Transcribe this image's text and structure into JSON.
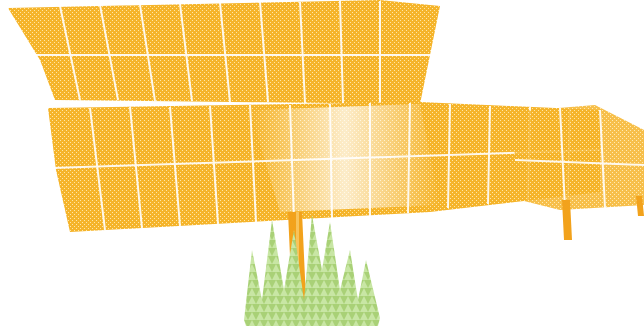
{
  "illustration": {
    "subject": "solar-tracker-array",
    "colors": {
      "background": "#ffffff",
      "panel": "#f5b42a",
      "panel_grid": "#ffe9b0",
      "post": "#f2a21c",
      "grass": "#9fcc6a",
      "grass_light": "#c6e3a0"
    }
  }
}
